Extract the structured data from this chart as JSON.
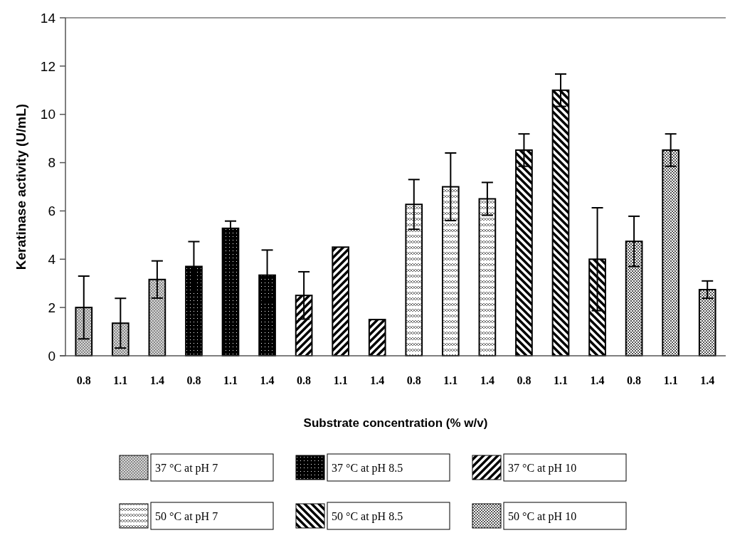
{
  "chart_data": {
    "type": "bar",
    "xlabel": "Substrate concentration (% w/v)",
    "ylabel": "Keratinase activity (U/mL)",
    "categories": [
      "0.8",
      "1.1",
      "1.4",
      "0.8",
      "1.1",
      "1.4",
      "0.8",
      "1.1",
      "1.4",
      "0.8",
      "1.1",
      "1.4",
      "0.8",
      "1.1",
      "1.4",
      "0.8",
      "1.1",
      "1.4"
    ],
    "series": [
      {
        "name": "37 °C at pH 7",
        "color": "#000000",
        "values": [
          2.0,
          1.35,
          3.16,
          null,
          null,
          null,
          null,
          null,
          null,
          null,
          null,
          null,
          null,
          null,
          null,
          null,
          null,
          null
        ],
        "errors": [
          1.3,
          1.03,
          0.77,
          null,
          null,
          null,
          null,
          null,
          null,
          null,
          null,
          null,
          null,
          null,
          null,
          null,
          null,
          null
        ]
      },
      {
        "name": "37 °C at pH 8.5",
        "color": "#000000",
        "values": [
          null,
          null,
          null,
          3.7,
          5.28,
          3.34,
          null,
          null,
          null,
          null,
          null,
          null,
          null,
          null,
          null,
          null,
          null,
          null
        ],
        "errors": [
          null,
          null,
          null,
          1.03,
          0.3,
          1.04,
          null,
          null,
          null,
          null,
          null,
          null,
          null,
          null,
          null,
          null,
          null,
          null
        ]
      },
      {
        "name": "37 °C at pH 10",
        "color": "#000000",
        "values": [
          null,
          null,
          null,
          null,
          null,
          null,
          2.5,
          4.5,
          1.5,
          null,
          null,
          null,
          null,
          null,
          null,
          null,
          null,
          null
        ],
        "errors": [
          null,
          null,
          null,
          null,
          null,
          null,
          0.98,
          null,
          null,
          null,
          null,
          null,
          null,
          null,
          null,
          null,
          null,
          null
        ]
      },
      {
        "name": "50 °C at pH 7",
        "color": "#000000",
        "values": [
          null,
          null,
          null,
          null,
          null,
          null,
          null,
          null,
          null,
          6.27,
          7.0,
          6.5,
          null,
          null,
          null,
          null,
          null,
          null
        ],
        "errors": [
          null,
          null,
          null,
          null,
          null,
          null,
          null,
          null,
          null,
          1.03,
          1.4,
          0.68,
          null,
          null,
          null,
          null,
          null,
          null
        ]
      },
      {
        "name": "50 °C at pH 8.5",
        "color": "#000000",
        "values": [
          null,
          null,
          null,
          null,
          null,
          null,
          null,
          null,
          null,
          null,
          null,
          null,
          8.52,
          11.0,
          4.0,
          null,
          null,
          null
        ],
        "errors": [
          null,
          null,
          null,
          null,
          null,
          null,
          null,
          null,
          null,
          null,
          null,
          null,
          0.67,
          0.67,
          2.13,
          null,
          null,
          null
        ]
      },
      {
        "name": "50 °C at pH 10",
        "color": "#000000",
        "values": [
          null,
          null,
          null,
          null,
          null,
          null,
          null,
          null,
          null,
          null,
          null,
          null,
          null,
          null,
          null,
          4.74,
          8.52,
          2.74
        ],
        "errors": [
          null,
          null,
          null,
          null,
          null,
          null,
          null,
          null,
          null,
          null,
          null,
          null,
          null,
          null,
          null,
          1.04,
          0.67,
          0.36
        ]
      }
    ],
    "ylim": [
      0,
      14
    ],
    "yticks": [
      0,
      2,
      4,
      6,
      8,
      10,
      12,
      14
    ],
    "grid": false,
    "legend": "bottom"
  }
}
